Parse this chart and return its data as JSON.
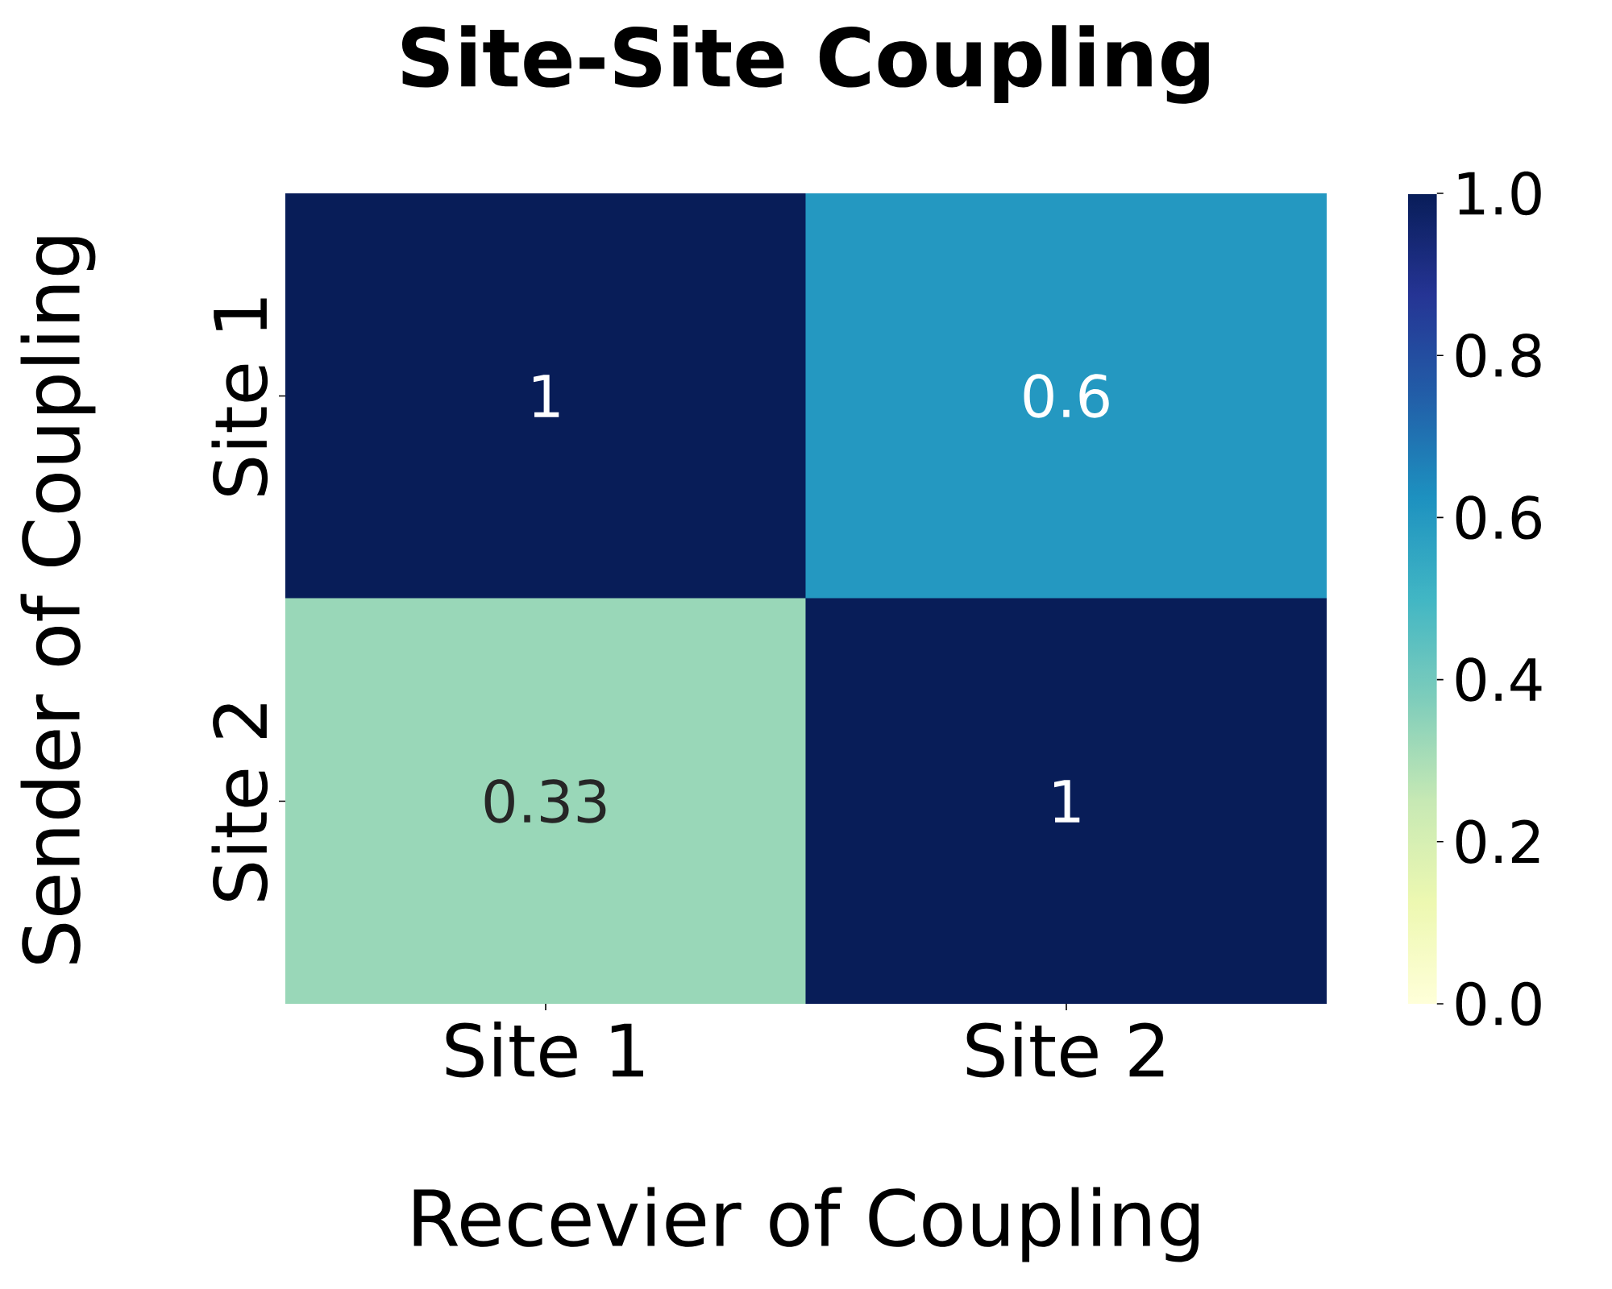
{
  "chart_data": {
    "type": "heatmap",
    "title": "Site-Site Coupling",
    "xlabel": "Recevier of Coupling",
    "ylabel": "Sender of Coupling",
    "categories": [
      "Site 1",
      "Site 2"
    ],
    "y_categories": [
      "Site 1",
      "Site 2"
    ],
    "cells": [
      [
        1,
        0.6
      ],
      [
        0.33,
        1
      ]
    ],
    "data_labels": true,
    "clim": [
      0,
      1
    ],
    "cticks": [
      {
        "value": 0,
        "label": "0.0"
      },
      0.2,
      0.4,
      0.6,
      0.8,
      {
        "value": 1,
        "label": "1.0"
      }
    ]
  }
}
